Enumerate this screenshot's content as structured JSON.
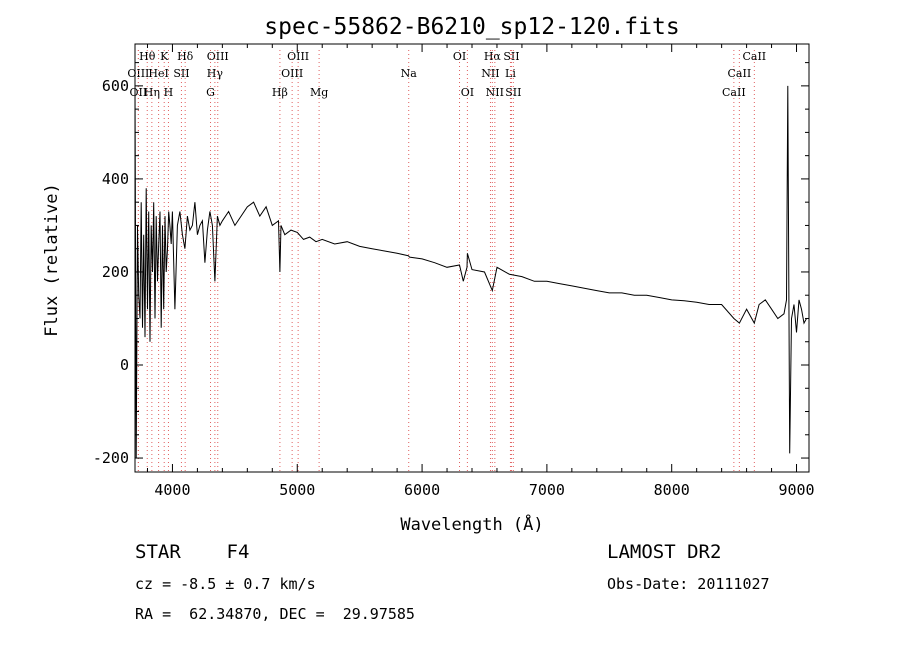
{
  "chart_data": {
    "type": "line",
    "title": "spec-55862-B6210_sp12-120.fits",
    "xlabel": "Wavelength (Å)",
    "ylabel": "Flux (relative)",
    "xlim": [
      3700,
      9100
    ],
    "ylim": [
      -230,
      690
    ],
    "xticks": [
      4000,
      5000,
      6000,
      7000,
      8000,
      9000
    ],
    "yticks": [
      -200,
      0,
      200,
      400,
      600
    ],
    "grid": false,
    "line_color": "#000000",
    "marker_color": "#e06060",
    "series": [
      {
        "x": [
          3700,
          3710,
          3720,
          3730,
          3740,
          3750,
          3760,
          3770,
          3780,
          3790,
          3800,
          3810,
          3820,
          3830,
          3840,
          3850,
          3860,
          3870,
          3880,
          3890,
          3900,
          3910,
          3920,
          3930,
          3940,
          3950,
          3960,
          3970,
          3980,
          3990,
          4000,
          4020,
          4040,
          4060,
          4080,
          4100,
          4120,
          4140,
          4160,
          4180,
          4200,
          4220,
          4240,
          4260,
          4280,
          4300,
          4320,
          4340,
          4360,
          4380,
          4400,
          4450,
          4500,
          4550,
          4600,
          4650,
          4700,
          4750,
          4800,
          4850,
          4861,
          4870,
          4900,
          4950,
          5000,
          5050,
          5100,
          5150,
          5200,
          5300,
          5400,
          5500,
          5600,
          5700,
          5800,
          5890,
          5900,
          6000,
          6100,
          6200,
          6300,
          6330,
          6360,
          6363,
          6400,
          6500,
          6563,
          6600,
          6700,
          6800,
          6900,
          7000,
          7100,
          7200,
          7300,
          7400,
          7500,
          7600,
          7700,
          7800,
          7900,
          8000,
          8100,
          8200,
          8300,
          8400,
          8498,
          8542,
          8600,
          8662,
          8700,
          8750,
          8800,
          8850,
          8900,
          8920,
          8930,
          8945,
          8960,
          8980,
          9000,
          9020,
          9040,
          9060,
          9080
        ],
        "values": [
          600,
          -200,
          300,
          150,
          100,
          350,
          80,
          280,
          60,
          380,
          120,
          330,
          50,
          300,
          200,
          350,
          100,
          320,
          180,
          260,
          330,
          80,
          300,
          120,
          320,
          200,
          250,
          330,
          300,
          260,
          330,
          120,
          300,
          330,
          280,
          250,
          320,
          290,
          300,
          350,
          280,
          300,
          310,
          220,
          290,
          330,
          300,
          180,
          320,
          300,
          310,
          330,
          300,
          320,
          340,
          350,
          320,
          340,
          300,
          310,
          200,
          300,
          280,
          290,
          285,
          270,
          275,
          265,
          270,
          260,
          265,
          255,
          250,
          245,
          240,
          235,
          232,
          228,
          220,
          210,
          215,
          180,
          210,
          240,
          205,
          200,
          160,
          210,
          195,
          190,
          180,
          180,
          175,
          170,
          165,
          160,
          155,
          155,
          150,
          150,
          145,
          140,
          138,
          135,
          130,
          130,
          100,
          90,
          120,
          90,
          130,
          140,
          120,
          100,
          110,
          140,
          600,
          -190,
          100,
          130,
          70,
          140,
          120,
          90,
          100
        ]
      }
    ],
    "line_markers": [
      {
        "label": "Hθ",
        "x": 3798
      },
      {
        "label": "K",
        "x": 3934
      },
      {
        "label": "Hδ",
        "x": 4102
      },
      {
        "label": "OIII",
        "x": 4363
      },
      {
        "label": "OIII",
        "x": 5007
      },
      {
        "label": "OI",
        "x": 6300
      },
      {
        "label": "Hα",
        "x": 6563
      },
      {
        "label": "SII",
        "x": 6716
      },
      {
        "label": "CaII",
        "x": 8662
      },
      {
        "label": "OIII",
        "x": 3727
      },
      {
        "label": "HeI",
        "x": 3889
      },
      {
        "label": "SII",
        "x": 4072
      },
      {
        "label": "Hγ",
        "x": 4340
      },
      {
        "label": "OIII",
        "x": 4959
      },
      {
        "label": "Na",
        "x": 5893
      },
      {
        "label": "NII",
        "x": 6548
      },
      {
        "label": "Li",
        "x": 6708
      },
      {
        "label": "CaII",
        "x": 8542
      },
      {
        "label": "OII",
        "x": 3727
      },
      {
        "label": "Hη",
        "x": 3835
      },
      {
        "label": "H",
        "x": 3968
      },
      {
        "label": "G",
        "x": 4305
      },
      {
        "label": "Hβ",
        "x": 4861
      },
      {
        "label": "Mg",
        "x": 5175
      },
      {
        "label": "OI",
        "x": 6363
      },
      {
        "label": "NII",
        "x": 6583
      },
      {
        "label": "SII",
        "x": 6731
      },
      {
        "label": "CaII",
        "x": 8498
      }
    ]
  },
  "info": {
    "classification": "STAR    F4",
    "redshift": "cz = -8.5 ± 0.7 km/s",
    "coords": "RA =  62.34870, DEC =  29.97585",
    "survey": "LAMOST DR2",
    "obs_date": "Obs-Date: 20111027"
  }
}
